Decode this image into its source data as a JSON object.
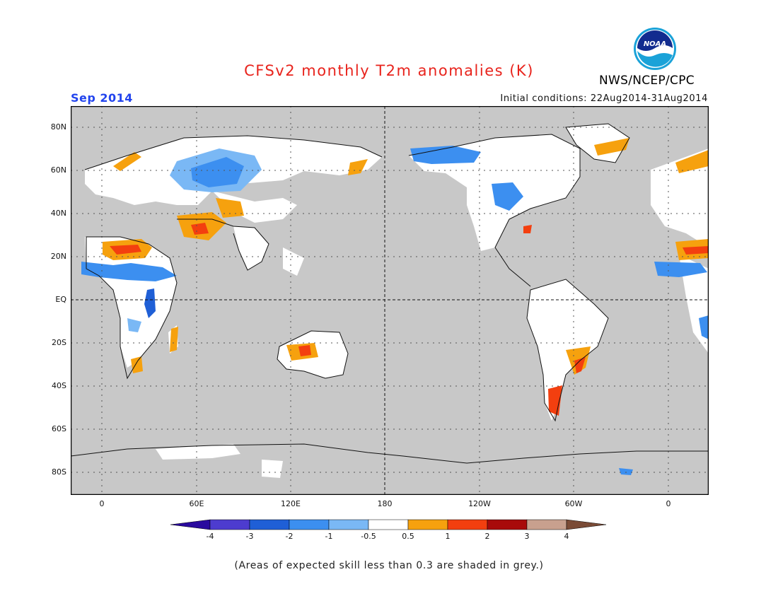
{
  "header": {
    "title": "CFSv2 monthly T2m anomalies (K)",
    "month": "Sep 2014",
    "initial_conditions": "Initial conditions: 22Aug2014-31Aug2014",
    "agency": "NWS/NCEP/CPC",
    "logo_text": "NOAA"
  },
  "map": {
    "y_labels": [
      "80N",
      "60N",
      "40N",
      "20N",
      "EQ",
      "20S",
      "40S",
      "60S",
      "80S"
    ],
    "x_labels": [
      "0",
      "60E",
      "120E",
      "180",
      "120W",
      "60W",
      "0"
    ],
    "background_color": "#c8c8c8"
  },
  "colorbar": {
    "labels": [
      "-4",
      "-3",
      "-2",
      "-1",
      "-0.5",
      "0.5",
      "1",
      "2",
      "3",
      "4"
    ],
    "colors": [
      "#2a0a9e",
      "#4d3ccf",
      "#1f5fd6",
      "#3c8ff0",
      "#7ab8f5",
      "#ffffff",
      "#f6a10e",
      "#f33f0f",
      "#a80a0a",
      "#c8a08e",
      "#7a4b36"
    ]
  },
  "footnote": "(Areas of expected skill less than 0.3 are shaded in grey.)"
}
